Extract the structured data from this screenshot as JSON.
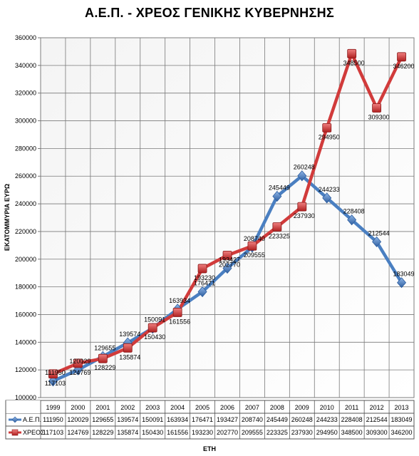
{
  "chart_data": {
    "type": "line",
    "title": "Α.Ε.Π. - ΧΡΕΟΣ ΓΕΝΙΚΗΣ ΚΥΒΕΡΝΗΣΗΣ",
    "xlabel": "ΕΤΗ",
    "ylabel": "ΕΚΑΤΟΜΜΥΡΙΑ ΕΥΡΩ",
    "ylim": [
      100000,
      360000
    ],
    "yticks": [
      "100000",
      "120000",
      "140000",
      "160000",
      "180000",
      "200000",
      "220000",
      "240000",
      "260000",
      "280000",
      "300000",
      "320000",
      "340000",
      "360000"
    ],
    "grid": true,
    "legend": "data-table-left",
    "categories": [
      "1999",
      "2000",
      "2001",
      "2002",
      "2003",
      "2004",
      "2005",
      "2006",
      "2007",
      "2008",
      "2009",
      "2010",
      "2011",
      "2012",
      "2013"
    ],
    "series": [
      {
        "name": "Α.Ε.Π.",
        "color": "#4a7fc1",
        "marker": "diamond",
        "values": [
          111950,
          120029,
          129655,
          139574,
          150091,
          163934,
          176471,
          193427,
          208740,
          245449,
          260248,
          244233,
          228408,
          212544,
          183049
        ]
      },
      {
        "name": "ΧΡΕΟΣ",
        "color": "#d13b3b",
        "marker": "square",
        "values": [
          117103,
          124769,
          128229,
          135874,
          150430,
          161556,
          193230,
          202770,
          209555,
          223325,
          237930,
          294950,
          348500,
          309300,
          346200
        ]
      }
    ]
  }
}
